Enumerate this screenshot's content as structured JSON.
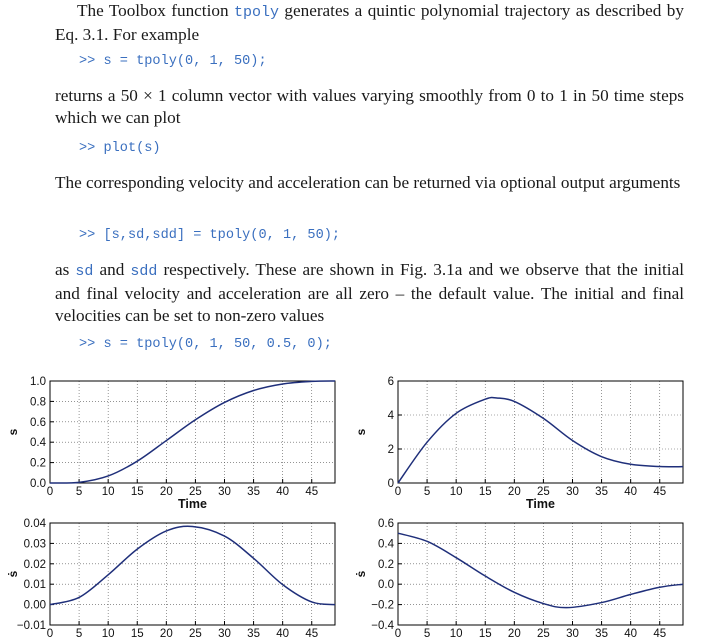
{
  "text": {
    "p1_pre": "The Toolbox function ",
    "p1_code": "tpoly",
    "p1_post": " generates a quintic polynomial trajectory as described by Eq. 3.1. For example",
    "code1": ">> s = tpoly(0, 1, 50);",
    "p2": "returns a 50 × 1 column vector with values varying smoothly from 0 to 1 in 50 time steps which we can plot",
    "code2": ">> plot(s)",
    "p3": "The corresponding velocity and acceleration can be returned via optional output arguments",
    "code3": ">> [s,sd,sdd] = tpoly(0, 1, 50);",
    "p4_a": "as ",
    "p4_sd": "sd",
    "p4_b": " and ",
    "p4_sdd": "sdd",
    "p4_c": " respectively. These are shown in Fig. 3.1a and we observe that the initial and final velocity and acceleration are all zero – the default value. The initial and final velocities can be set to non-zero values",
    "code4": ">> s = tpoly(0, 1, 50, 0.5, 0);"
  },
  "colors": {
    "code": "#3a6fbf",
    "curve": "#1f2f7a",
    "text": "#1a1a1a"
  },
  "chart_data": [
    {
      "type": "line",
      "xlabel": "Time",
      "ylabel": "s",
      "xlim": [
        0,
        49
      ],
      "ylim": [
        0,
        1
      ],
      "xticks": [
        "0",
        "5",
        "10",
        "15",
        "20",
        "25",
        "30",
        "35",
        "40",
        "45"
      ],
      "yticks": [
        "0.0",
        "0.2",
        "0.4",
        "0.6",
        "0.8",
        "1.0"
      ],
      "grid": true,
      "x": [
        0,
        5,
        10,
        15,
        20,
        25,
        30,
        35,
        40,
        45,
        49
      ],
      "y": [
        0,
        0.0064,
        0.069,
        0.214,
        0.416,
        0.62,
        0.79,
        0.907,
        0.971,
        0.996,
        1
      ]
    },
    {
      "type": "line",
      "xlabel": "Time",
      "ylabel": "s",
      "xlim": [
        0,
        49
      ],
      "ylim": [
        0,
        6
      ],
      "xticks": [
        "0",
        "5",
        "10",
        "15",
        "20",
        "25",
        "30",
        "35",
        "40",
        "45"
      ],
      "yticks": [
        "0",
        "2",
        "4",
        "6"
      ],
      "grid": true,
      "x": [
        0,
        5,
        10,
        15,
        17,
        20,
        25,
        30,
        35,
        40,
        45,
        49
      ],
      "y": [
        0,
        2.4,
        4.1,
        4.93,
        5.0,
        4.8,
        3.8,
        2.5,
        1.55,
        1.1,
        0.97,
        0.96
      ]
    },
    {
      "type": "line",
      "xlabel": "",
      "ylabel": "ṡ",
      "xlim": [
        0,
        49
      ],
      "ylim": [
        -0.01,
        0.04
      ],
      "xticks": [
        "0",
        "5",
        "10",
        "15",
        "20",
        "25",
        "30",
        "35",
        "40",
        "45"
      ],
      "yticks": [
        "−0.01",
        "0.00",
        "0.01",
        "0.02",
        "0.03",
        "0.04"
      ],
      "grid": true,
      "x": [
        0,
        5,
        10,
        15,
        20,
        24.5,
        30,
        35,
        40,
        45,
        49
      ],
      "y": [
        0,
        0.0035,
        0.0146,
        0.0272,
        0.0361,
        0.0383,
        0.0336,
        0.0227,
        0.0098,
        0.0013,
        0
      ]
    },
    {
      "type": "line",
      "xlabel": "",
      "ylabel": "ṡ",
      "xlim": [
        0,
        49
      ],
      "ylim": [
        -0.4,
        0.6
      ],
      "xticks": [
        "0",
        "5",
        "10",
        "15",
        "20",
        "25",
        "30",
        "35",
        "40",
        "45"
      ],
      "yticks": [
        "−0.4",
        "−0.2",
        "0.0",
        "0.2",
        "0.4",
        "0.6"
      ],
      "grid": true,
      "x": [
        0,
        5,
        10,
        15,
        20,
        25,
        29,
        35,
        40,
        45,
        49
      ],
      "y": [
        0.5,
        0.42,
        0.26,
        0.08,
        -0.08,
        -0.19,
        -0.23,
        -0.18,
        -0.1,
        -0.03,
        0
      ]
    }
  ]
}
